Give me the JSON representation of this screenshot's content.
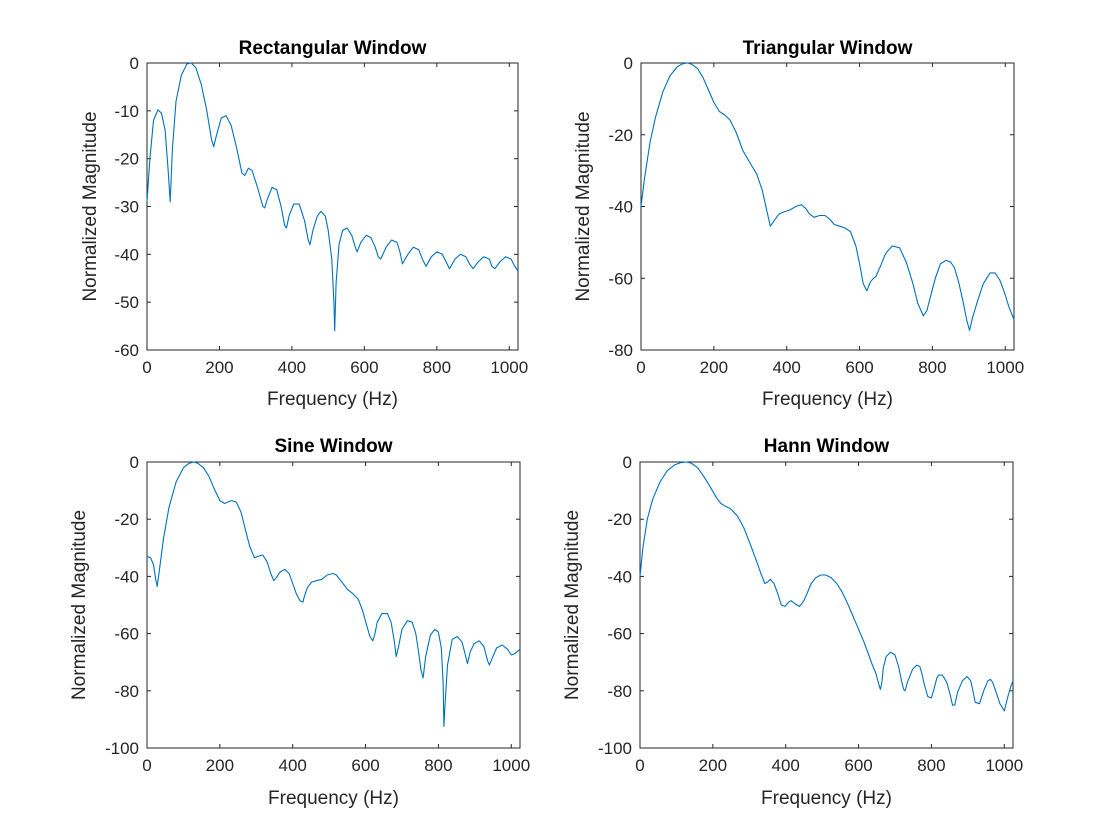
{
  "chart_data": [
    {
      "type": "line",
      "title": "Rectangular Window",
      "xlabel": "Frequency (Hz)",
      "ylabel": "Normalized Magnitude",
      "xlim": [
        0,
        1024
      ],
      "ylim": [
        -60,
        0
      ],
      "xticks": [
        0,
        200,
        400,
        600,
        800,
        1000
      ],
      "yticks": [
        0,
        -10,
        -20,
        -30,
        -40,
        -50,
        -60
      ],
      "color": "#0072bd",
      "series": [
        {
          "x": [
            0,
            8,
            18,
            30,
            40,
            50,
            58,
            64,
            70,
            80,
            95,
            110,
            122,
            135,
            150,
            165,
            178,
            184,
            192,
            205,
            218,
            232,
            248,
            262,
            270,
            280,
            290,
            305,
            320,
            325,
            332,
            345,
            358,
            370,
            380,
            385,
            392,
            405,
            420,
            435,
            445,
            450,
            458,
            470,
            480,
            492,
            500,
            510,
            516,
            518,
            522,
            530,
            540,
            552,
            565,
            575,
            580,
            590,
            605,
            618,
            630,
            638,
            645,
            660,
            675,
            690,
            698,
            705,
            720,
            735,
            750,
            760,
            770,
            785,
            800,
            815,
            825,
            835,
            850,
            865,
            880,
            890,
            900,
            915,
            930,
            945,
            952,
            960,
            975,
            990,
            1005,
            1015,
            1024
          ],
          "y": [
            -29,
            -20,
            -12,
            -9.8,
            -10.5,
            -14,
            -22,
            -29,
            -18,
            -8,
            -2.5,
            -0.2,
            0,
            -1,
            -4.5,
            -10,
            -16,
            -17.5,
            -15,
            -11.5,
            -11,
            -13,
            -18,
            -23,
            -23.5,
            -22,
            -22.5,
            -26,
            -30,
            -30.3,
            -28.5,
            -26,
            -26.5,
            -30,
            -34,
            -34.5,
            -32,
            -29.5,
            -29.5,
            -33,
            -37,
            -38,
            -35,
            -32,
            -31,
            -32,
            -35,
            -41,
            -50,
            -56,
            -46,
            -38,
            -35,
            -34.5,
            -36,
            -38.5,
            -39.5,
            -37.5,
            -36,
            -36.5,
            -38.5,
            -40.5,
            -41,
            -38.5,
            -37,
            -37.5,
            -39.5,
            -42,
            -40,
            -38.5,
            -39,
            -41,
            -42.5,
            -40.5,
            -39.5,
            -40,
            -41.5,
            -43,
            -41,
            -40,
            -40.5,
            -42,
            -43,
            -41.5,
            -40.5,
            -41,
            -42.5,
            -43,
            -41.5,
            -40.5,
            -41,
            -42.5,
            -43.5
          ]
        }
      ]
    },
    {
      "type": "line",
      "title": "Triangular Window",
      "xlabel": "Frequency (Hz)",
      "ylabel": "Normalized Magnitude",
      "xlim": [
        0,
        1024
      ],
      "ylim": [
        -80,
        0
      ],
      "xticks": [
        0,
        200,
        400,
        600,
        800,
        1000
      ],
      "yticks": [
        0,
        -20,
        -40,
        -60,
        -80
      ],
      "color": "#0072bd",
      "series": [
        {
          "x": [
            0,
            10,
            25,
            40,
            60,
            80,
            100,
            115,
            128,
            140,
            155,
            170,
            185,
            200,
            215,
            230,
            245,
            262,
            280,
            300,
            318,
            333,
            345,
            355,
            365,
            372,
            380,
            392,
            408,
            425,
            440,
            452,
            462,
            475,
            490,
            505,
            518,
            530,
            545,
            560,
            575,
            590,
            600,
            610,
            620,
            630,
            638,
            645,
            658,
            672,
            690,
            710,
            728,
            745,
            760,
            775,
            785,
            795,
            808,
            822,
            838,
            850,
            860,
            872,
            885,
            895,
            902,
            910,
            925,
            940,
            958,
            972,
            985,
            998,
            1010,
            1024
          ],
          "y": [
            -40,
            -32,
            -22,
            -15,
            -8,
            -3.5,
            -1,
            -0.2,
            0,
            -0.4,
            -1.5,
            -4,
            -7.5,
            -11,
            -13.5,
            -14.5,
            -16,
            -19.5,
            -24.5,
            -28,
            -31,
            -35.5,
            -41,
            -45.5,
            -44,
            -43,
            -42,
            -41.5,
            -41,
            -40,
            -39.5,
            -40.5,
            -42,
            -43,
            -42.5,
            -42.5,
            -43.5,
            -45,
            -45.5,
            -46,
            -47,
            -51,
            -56,
            -61.5,
            -63.5,
            -61,
            -60,
            -59.5,
            -56.5,
            -53,
            -51,
            -51.5,
            -55.5,
            -61,
            -67,
            -70.5,
            -69,
            -65,
            -60,
            -56,
            -55,
            -55.5,
            -57,
            -61,
            -67,
            -72,
            -74.5,
            -71,
            -66,
            -61.5,
            -58.5,
            -58.5,
            -60.5,
            -64,
            -68,
            -71.5
          ]
        }
      ]
    },
    {
      "type": "line",
      "title": "Sine Window",
      "xlabel": "Frequency (Hz)",
      "ylabel": "Normalized Magnitude",
      "xlim": [
        0,
        1024
      ],
      "ylim": [
        -100,
        0
      ],
      "xticks": [
        0,
        200,
        400,
        600,
        800,
        1000
      ],
      "yticks": [
        0,
        -20,
        -40,
        -60,
        -80,
        -100
      ],
      "color": "#0072bd",
      "series": [
        {
          "x": [
            0,
            10,
            18,
            24,
            28,
            35,
            45,
            60,
            80,
            100,
            115,
            128,
            140,
            155,
            170,
            185,
            200,
            213,
            222,
            232,
            245,
            258,
            270,
            282,
            295,
            305,
            318,
            330,
            340,
            348,
            355,
            365,
            378,
            390,
            400,
            410,
            420,
            428,
            432,
            440,
            452,
            465,
            480,
            495,
            510,
            520,
            535,
            550,
            565,
            580,
            592,
            603,
            612,
            620,
            625,
            632,
            645,
            660,
            670,
            678,
            684,
            690,
            700,
            715,
            728,
            738,
            745,
            752,
            758,
            765,
            778,
            790,
            800,
            808,
            813,
            815,
            818,
            825,
            838,
            852,
            865,
            875,
            880,
            887,
            898,
            912,
            925,
            935,
            940,
            948,
            960,
            975,
            990,
            1000,
            1010,
            1024
          ],
          "y": [
            -33,
            -33.5,
            -36,
            -41,
            -43.5,
            -37,
            -27,
            -16,
            -7,
            -2,
            -0.5,
            0,
            -0.5,
            -2,
            -5,
            -9.5,
            -13.5,
            -14.5,
            -14,
            -13.5,
            -14,
            -17.5,
            -23.5,
            -29.5,
            -33.5,
            -33,
            -32.5,
            -35,
            -39,
            -41.5,
            -40.5,
            -38.5,
            -37.5,
            -39,
            -42.5,
            -46,
            -48.5,
            -49,
            -47,
            -44,
            -42,
            -41.5,
            -41,
            -39.5,
            -39,
            -39.5,
            -42,
            -44.5,
            -46,
            -48,
            -52,
            -57,
            -61,
            -62.5,
            -60.5,
            -56,
            -53,
            -53,
            -56,
            -62,
            -68,
            -65,
            -58.5,
            -55.5,
            -56,
            -60,
            -66,
            -72.5,
            -75.5,
            -68,
            -60.5,
            -58.5,
            -59.5,
            -65,
            -77,
            -92.5,
            -85,
            -71,
            -62,
            -61,
            -63,
            -68,
            -70.5,
            -66.5,
            -63.5,
            -62.5,
            -64.5,
            -69.5,
            -71,
            -68.5,
            -65,
            -64,
            -65.5,
            -67.5,
            -67,
            -65.5
          ]
        }
      ]
    },
    {
      "type": "line",
      "title": "Hann Window",
      "xlabel": "Frequency (Hz)",
      "ylabel": "Normalized Magnitude",
      "xlim": [
        0,
        1024
      ],
      "ylim": [
        -100,
        0
      ],
      "xticks": [
        0,
        200,
        400,
        600,
        800,
        1000
      ],
      "yticks": [
        0,
        -20,
        -40,
        -60,
        -80,
        -100
      ],
      "color": "#0072bd",
      "series": [
        {
          "x": [
            0,
            8,
            20,
            35,
            55,
            75,
            95,
            112,
            128,
            142,
            158,
            175,
            192,
            210,
            222,
            235,
            250,
            268,
            285,
            302,
            318,
            332,
            343,
            350,
            358,
            368,
            378,
            388,
            398,
            408,
            415,
            425,
            438,
            450,
            460,
            470,
            482,
            496,
            510,
            525,
            540,
            555,
            570,
            585,
            600,
            615,
            628,
            638,
            648,
            655,
            660,
            664,
            668,
            676,
            688,
            700,
            710,
            718,
            724,
            728,
            734,
            748,
            760,
            768,
            774,
            780,
            790,
            800,
            808,
            815,
            820,
            830,
            842,
            852,
            858,
            864,
            872,
            885,
            898,
            908,
            914,
            920,
            932,
            945,
            955,
            962,
            968,
            975,
            988,
            1000,
            1010,
            1018,
            1024
          ],
          "y": [
            -40,
            -30,
            -20,
            -13,
            -7,
            -3,
            -1,
            -0.2,
            0,
            -0.5,
            -2,
            -5,
            -8.5,
            -12.5,
            -14.5,
            -15.5,
            -16.5,
            -19,
            -23,
            -28.5,
            -34,
            -39,
            -42.5,
            -42,
            -41,
            -42.5,
            -46,
            -50,
            -50.5,
            -49,
            -48.5,
            -49.5,
            -50.5,
            -48.5,
            -45.5,
            -42.5,
            -40.5,
            -39.5,
            -39.5,
            -40.5,
            -42.5,
            -45.5,
            -49.5,
            -54,
            -58.5,
            -63,
            -67.5,
            -71,
            -74,
            -77.5,
            -79.5,
            -77,
            -72,
            -68,
            -66.5,
            -67.5,
            -71.5,
            -76.5,
            -79.5,
            -80,
            -77,
            -72.5,
            -71,
            -71.5,
            -74,
            -77.5,
            -82,
            -82.5,
            -79,
            -75.5,
            -74.5,
            -74.5,
            -77,
            -81.5,
            -85,
            -85,
            -80.5,
            -76.5,
            -75,
            -76.5,
            -80,
            -84,
            -84.5,
            -79.5,
            -76.5,
            -76,
            -77,
            -79.5,
            -84.5,
            -87,
            -82,
            -78.5,
            -76.5
          ]
        }
      ]
    }
  ]
}
